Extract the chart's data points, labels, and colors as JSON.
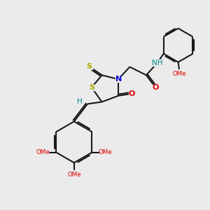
{
  "bg_color": "#ebebeb",
  "bond_color": "#1a1a1a",
  "bond_width": 1.5,
  "N_color": "#0000dd",
  "O_color": "#dd0000",
  "S_color": "#aaaa00",
  "H_color": "#008888",
  "figsize": [
    3.0,
    3.0
  ],
  "dpi": 100,
  "xlim": [
    0,
    10
  ],
  "ylim": [
    0,
    10
  ]
}
